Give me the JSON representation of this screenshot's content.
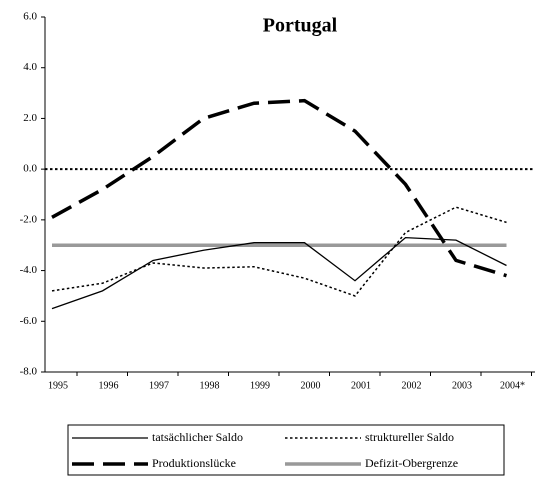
{
  "chart_data": {
    "type": "line",
    "title": "Portugal",
    "categories": [
      "1995",
      "1996",
      "1997",
      "1998",
      "1999",
      "2000",
      "2001",
      "2002",
      "2003",
      "2004*"
    ],
    "series": [
      {
        "name": "tatsächlicher Saldo",
        "color": "#000000",
        "style": "solid",
        "width": 1.3,
        "values": [
          -5.5,
          -4.8,
          -3.6,
          -3.2,
          -2.9,
          -2.9,
          -4.4,
          -2.7,
          -2.8,
          -3.8
        ]
      },
      {
        "name": "struktureller Saldo",
        "color": "#000000",
        "style": "dotted",
        "width": 1.5,
        "values": [
          -4.8,
          -4.5,
          -3.7,
          -3.9,
          -3.85,
          -4.3,
          -5.0,
          -2.5,
          -1.5,
          -2.1
        ]
      },
      {
        "name": "Produktionslücke",
        "color": "#000000",
        "style": "dashed",
        "width": 3.5,
        "values": [
          -1.9,
          -0.8,
          0.5,
          2.0,
          2.6,
          2.7,
          1.5,
          -0.6,
          -3.6,
          -4.2
        ]
      },
      {
        "name": "Defizit-Obergrenze",
        "color": "#999999",
        "style": "solid",
        "width": 3.5,
        "values": [
          -3,
          -3,
          -3,
          -3,
          -3,
          -3,
          -3,
          -3,
          -3,
          -3
        ]
      }
    ],
    "ylim": [
      -8,
      6
    ],
    "yticks": [
      {
        "value": -8,
        "label": "-8.0"
      },
      {
        "value": -6,
        "label": "-6.0"
      },
      {
        "value": -4,
        "label": "-4.0"
      },
      {
        "value": -2,
        "label": "-2.0"
      },
      {
        "value": 0,
        "label": "0.0"
      },
      {
        "value": 2,
        "label": "2.0"
      },
      {
        "value": 4,
        "label": "4.0"
      },
      {
        "value": 6,
        "label": "6.0"
      }
    ],
    "zero_line": "dotted",
    "legend": "bottom"
  }
}
